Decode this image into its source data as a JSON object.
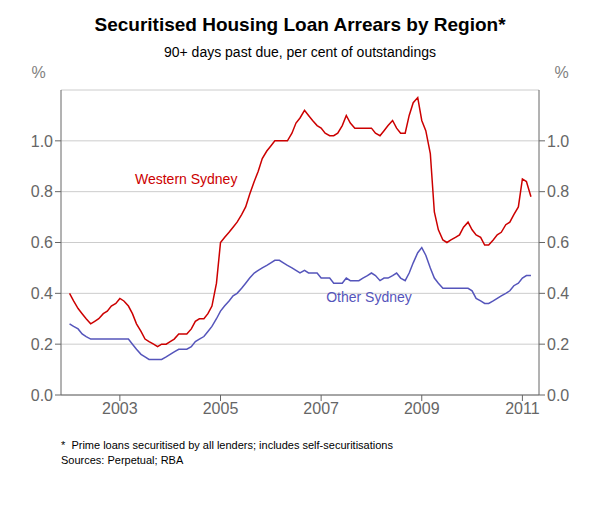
{
  "chart_data": {
    "type": "line",
    "title": "Securitised Housing Loan Arrears by Region*",
    "subtitle": "90+ days past due, per cent of outstandings",
    "y_label": "%",
    "y2_label": "%",
    "footnote": "*  Prime loans securitised by all lenders; includes self-securitisations\nSources: Perpetual; RBA",
    "xlim": [
      2001.83,
      2011.33
    ],
    "xticks": [
      2003,
      2005,
      2007,
      2009,
      2011
    ],
    "ylim": [
      0.0,
      1.2
    ],
    "yticks": [
      {
        "value": 0.0,
        "label": "0.0"
      },
      0.2,
      0.4,
      0.6,
      0.8,
      {
        "value": 1.0,
        "label": "1.0"
      }
    ],
    "y2lim": [
      0.0,
      1.2
    ],
    "y2ticks": [
      {
        "value": 0.0,
        "label": "0.0"
      },
      0.2,
      0.4,
      0.6,
      0.8,
      {
        "value": 1.0,
        "label": "1.0"
      }
    ],
    "grid": true,
    "x": [
      2002.0,
      2002.08,
      2002.17,
      2002.25,
      2002.33,
      2002.42,
      2002.5,
      2002.58,
      2002.67,
      2002.75,
      2002.83,
      2002.92,
      2003.0,
      2003.08,
      2003.17,
      2003.25,
      2003.33,
      2003.42,
      2003.5,
      2003.58,
      2003.67,
      2003.75,
      2003.83,
      2003.92,
      2004.0,
      2004.08,
      2004.17,
      2004.25,
      2004.33,
      2004.42,
      2004.5,
      2004.58,
      2004.67,
      2004.75,
      2004.83,
      2004.92,
      2005.0,
      2005.08,
      2005.17,
      2005.25,
      2005.33,
      2005.42,
      2005.5,
      2005.58,
      2005.67,
      2005.75,
      2005.83,
      2005.92,
      2006.0,
      2006.08,
      2006.17,
      2006.25,
      2006.33,
      2006.42,
      2006.5,
      2006.58,
      2006.67,
      2006.75,
      2006.83,
      2006.92,
      2007.0,
      2007.08,
      2007.17,
      2007.25,
      2007.33,
      2007.42,
      2007.5,
      2007.58,
      2007.67,
      2007.75,
      2007.83,
      2007.92,
      2008.0,
      2008.08,
      2008.17,
      2008.25,
      2008.33,
      2008.42,
      2008.5,
      2008.58,
      2008.67,
      2008.75,
      2008.83,
      2008.92,
      2009.0,
      2009.08,
      2009.17,
      2009.25,
      2009.33,
      2009.42,
      2009.5,
      2009.58,
      2009.67,
      2009.75,
      2009.83,
      2009.92,
      2010.0,
      2010.08,
      2010.17,
      2010.25,
      2010.33,
      2010.42,
      2010.5,
      2010.58,
      2010.67,
      2010.75,
      2010.83,
      2010.92,
      2011.0,
      2011.08,
      2011.17
    ],
    "series": [
      {
        "name": "Western Sydney",
        "color": "#cc0000",
        "values": [
          0.4,
          0.37,
          0.34,
          0.32,
          0.3,
          0.28,
          0.29,
          0.3,
          0.32,
          0.33,
          0.35,
          0.36,
          0.38,
          0.37,
          0.35,
          0.32,
          0.28,
          0.25,
          0.22,
          0.21,
          0.2,
          0.19,
          0.2,
          0.2,
          0.21,
          0.22,
          0.24,
          0.24,
          0.24,
          0.26,
          0.29,
          0.3,
          0.3,
          0.32,
          0.35,
          0.44,
          0.6,
          0.62,
          0.64,
          0.66,
          0.68,
          0.71,
          0.74,
          0.79,
          0.84,
          0.88,
          0.93,
          0.96,
          0.98,
          1.0,
          1.0,
          1.0,
          1.0,
          1.03,
          1.07,
          1.09,
          1.12,
          1.1,
          1.08,
          1.06,
          1.05,
          1.03,
          1.02,
          1.02,
          1.03,
          1.06,
          1.1,
          1.07,
          1.05,
          1.05,
          1.05,
          1.05,
          1.05,
          1.03,
          1.02,
          1.04,
          1.06,
          1.08,
          1.05,
          1.03,
          1.03,
          1.1,
          1.15,
          1.17,
          1.08,
          1.04,
          0.95,
          0.72,
          0.65,
          0.61,
          0.6,
          0.61,
          0.62,
          0.63,
          0.66,
          0.68,
          0.65,
          0.63,
          0.62,
          0.59,
          0.59,
          0.61,
          0.63,
          0.64,
          0.67,
          0.68,
          0.71,
          0.74,
          0.85,
          0.84,
          0.78
        ]
      },
      {
        "name": "Other Sydney",
        "color": "#5555bb",
        "values": [
          0.28,
          0.27,
          0.26,
          0.24,
          0.23,
          0.22,
          0.22,
          0.22,
          0.22,
          0.22,
          0.22,
          0.22,
          0.22,
          0.22,
          0.22,
          0.2,
          0.18,
          0.16,
          0.15,
          0.14,
          0.14,
          0.14,
          0.14,
          0.15,
          0.16,
          0.17,
          0.18,
          0.18,
          0.18,
          0.19,
          0.21,
          0.22,
          0.23,
          0.25,
          0.27,
          0.3,
          0.33,
          0.35,
          0.37,
          0.39,
          0.4,
          0.42,
          0.44,
          0.46,
          0.48,
          0.49,
          0.5,
          0.51,
          0.52,
          0.53,
          0.53,
          0.52,
          0.51,
          0.5,
          0.49,
          0.48,
          0.49,
          0.48,
          0.48,
          0.48,
          0.46,
          0.46,
          0.46,
          0.44,
          0.44,
          0.44,
          0.46,
          0.45,
          0.45,
          0.45,
          0.46,
          0.47,
          0.48,
          0.47,
          0.45,
          0.46,
          0.46,
          0.47,
          0.48,
          0.46,
          0.45,
          0.48,
          0.52,
          0.56,
          0.58,
          0.55,
          0.5,
          0.46,
          0.44,
          0.42,
          0.42,
          0.42,
          0.42,
          0.42,
          0.42,
          0.42,
          0.41,
          0.38,
          0.37,
          0.36,
          0.36,
          0.37,
          0.38,
          0.39,
          0.4,
          0.41,
          0.43,
          0.44,
          0.46,
          0.47,
          0.47
        ]
      }
    ],
    "annotations": [
      {
        "text": "Western Sydney",
        "x": 2003.3,
        "y": 0.82,
        "color": "#cc0000"
      },
      {
        "text": "Other Sydney",
        "x": 2007.1,
        "y": 0.355,
        "color": "#5555bb"
      }
    ]
  }
}
